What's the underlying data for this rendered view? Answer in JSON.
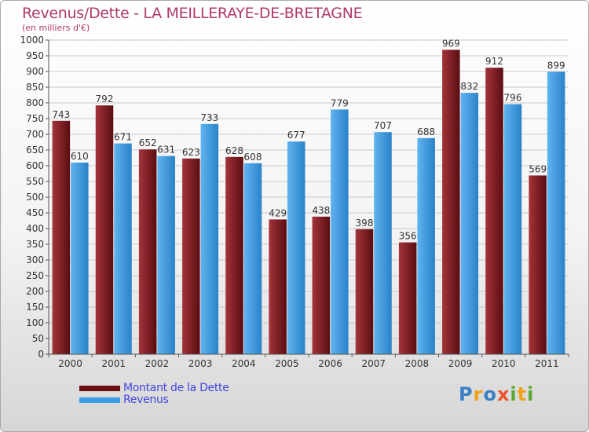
{
  "header": {
    "title": "Revenus/Dette - LA MEILLERAYE-DE-BRETAGNE",
    "subtitle": "(en milliers d'€)"
  },
  "chart_data": {
    "type": "bar",
    "title": "Revenus/Dette - LA MEILLERAYE-DE-BRETAGNE",
    "subtitle": "(en milliers d'€)",
    "categories": [
      "2000",
      "2001",
      "2002",
      "2003",
      "2004",
      "2005",
      "2006",
      "2007",
      "2008",
      "2009",
      "2010",
      "2011"
    ],
    "series": [
      {
        "name": "Montant de la Dette",
        "color": "#7a1a1f",
        "values": [
          743,
          792,
          652,
          623,
          628,
          429,
          438,
          398,
          356,
          969,
          912,
          569
        ]
      },
      {
        "name": "Revenus",
        "color": "#3d9de2",
        "values": [
          610,
          671,
          631,
          733,
          608,
          677,
          779,
          707,
          688,
          832,
          796,
          899
        ]
      }
    ],
    "ylim": [
      0,
      1000
    ],
    "ytick_step": 50,
    "grid": true,
    "legend_position": "bottom-left",
    "data_labels": true
  },
  "legend": {
    "items": [
      {
        "label": "Montant de la Dette",
        "color": "#6b0f14"
      },
      {
        "label": "Revenus",
        "color": "#3d9de2"
      }
    ]
  },
  "logo": {
    "letters": [
      "P",
      "r",
      "o",
      "x",
      "i",
      "t",
      "i"
    ],
    "colors": [
      "#3b7fc4",
      "#f2a21a",
      "#3b7fc4",
      "#e8532a",
      "#5aa830",
      "#f2a21a",
      "#5aa830"
    ]
  }
}
